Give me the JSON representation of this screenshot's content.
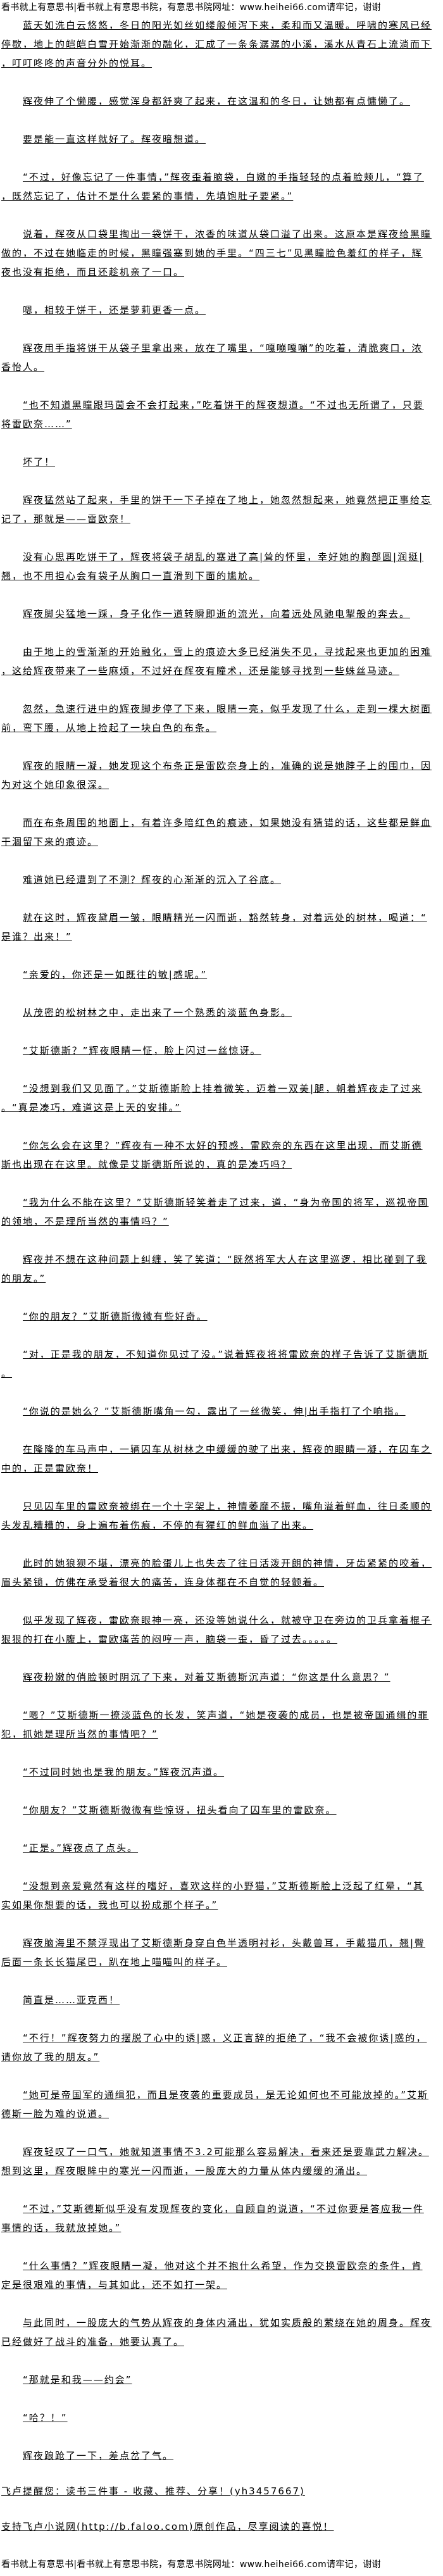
{
  "banner": "看书就上有意思书|看书就上有意思书院，有意思书院网址：www.heihei66.com请牢记，谢谢",
  "paragraphs": [
    "蓝天如洗白云悠悠，冬日的阳光如丝如缕般倾泻下来，柔和而又温暖。呼啸的寒风已经停歇，地上的皑皑白雪开始渐渐的融化，汇成了一条条潺潺的小溪，溪水从青石上流淌而下，叮叮咚咚的声音分外的悦耳。",
    "辉夜伸了个懒腰，感觉浑身都舒爽了起来，在这温和的冬日，让她都有点慵懒了。",
    "要是能一直这样就好了。辉夜暗想道。",
    "“不过，好像忘记了一件事情，”辉夜歪着脑袋，白嫩的手指轻轻的点着脸颊儿，“算了，既然忘记了，估计不是什么要紧的事情，先填饱肚子要紧。”",
    "说着，辉夜从口袋里掏出一袋饼干，浓香的味道从袋口溢了出来。这原本是辉夜给黑瞳做的，不过在她临走的时候，黑瞳强塞到她的手里。“四三七”见黑瞳脸色羞红的样子，辉夜也没有拒绝，而且还趁机亲了一口。",
    "嗯，相较于饼干，还是萝莉更香一点。",
    "辉夜用手指将饼干从袋子里拿出来，放在了嘴里，“嘎嘣嘎嘣”的吃着，清脆爽口，浓香怡人。",
    "“也不知道黑瞳跟玛茵会不会打起来，”吃着饼干的辉夜想道。“不过也无所谓了，只要将雷欧奈……”",
    "坏了！",
    "辉夜猛然站了起来，手里的饼干一下子掉在了地上，她忽然想起来，她竟然把正事给忘记了，那就是——雷欧奈！",
    "没有心思再吃饼干了，辉夜将袋子胡乱的塞进了高|耸的怀里，幸好她的胸部圆|润挺|翘，也不用担心会有袋子从胸口一直滑到下面的尴尬。",
    "辉夜脚尖猛地一踩，身子化作一道转瞬即逝的流光，向着远处风驰电掣般的奔去。",
    "由于地上的雪渐渐的开始融化，雪上的痕迹大多已经消失不见，寻找起来也更加的困难，这给辉夜带来了一些麻烦，不过好在辉夜有瞳术，还是能够寻找到一些蛛丝马迹。",
    "忽然，急速行进中的辉夜脚步停了下来，眼睛一亮，似乎发现了什么，走到一棵大树面前，弯下腰，从地上捡起了一块白色的布条。",
    "辉夜的眼睛一凝，她发现这个布条正是雷欧奈身上的，准确的说是她脖子上的围巾，因为对这个她印象很深。",
    "而在布条周围的地面上，有着许多暗红色的痕迹，如果她没有猜错的话，这些都是鲜血干涸留下来的痕迹。",
    "难道她已经遭到了不测？辉夜的心渐渐的沉入了谷底。",
    "就在这时，辉夜黛眉一皱，眼睛精光一闪而逝，豁然转身，对着远处的树林，喝道：“是谁？出来！”",
    "“亲爱的，你还是一如既往的敏|感呢。”",
    "从茂密的松树林之中，走出来了一个熟悉的淡蓝色身影。",
    "“艾斯德斯？”辉夜眼睛一怔，脸上闪过一丝惊讶。",
    "“没想到我们又见面了。”艾斯德斯脸上挂着微笑，迈着一双美|腿，朝着辉夜走了过来。“真是凑巧，难道这是上天的安排。”",
    "“你怎么会在这里？”辉夜有一种不太好的预感，雷欧奈的东西在这里出现，而艾斯德斯也出现在在这里。就像是艾斯德斯所说的，真的是凑巧吗？",
    "“我为什么不能在这里？”艾斯德斯轻笑着走了过来，道，“身为帝国的将军，巡视帝国的领地，不是理所当然的事情吗？”",
    "辉夜并不想在这种问题上纠缠，笑了笑道：“既然将军大人在这里巡逻，相比碰到了我的朋友。”",
    "“你的朋友？”艾斯德斯微微有些好奇。",
    "“对，正是我的朋友，不知道你见过了没。”说着辉夜将将雷欧奈的样子告诉了艾斯德斯。",
    "“你说的是她么？”艾斯德斯嘴角一勾，露出了一丝微笑，伸|出手指打了个响指。",
    "在隆隆的车马声中，一辆囚车从树林之中缓缓的驶了出来，辉夜的眼睛一凝，在囚车之中的，正是雷欧奈！",
    "只见囚车里的雷欧奈被绑在一个十字架上，神情萎靡不振，嘴角溢着鲜血，往日柔顺的头发乱糟糟的，身上遍布着伤痕，不停的有猩红的鲜血溢了出来。",
    "此时的她狼狈不堪，漂亮的脸蛋儿上也失去了往日活泼开朗的神情，牙齿紧紧的咬着，眉头紧锁，仿佛在承受着很大的痛苦，连身体都在不自觉的轻颤着。",
    "似乎发现了辉夜，雷欧奈眼神一亮，还没等她说什么，就被守卫在旁边的卫兵拿着棍子狠狠的打在小腹上，雷欧痛苦的闷哼一声，脑袋一歪，昏了过去。。。。。",
    "辉夜粉嫩的俏脸顿时阴沉了下来，对着艾斯德斯沉声道：“你这是什么意思？”",
    "“嗯？”艾斯德斯一撩淡蓝色的长发，笑声道，“她是夜袭的成员，也是被帝国通缉的罪犯，抓她是理所当然的事情吧？”",
    "“不过同时她也是我的朋友。”辉夜沉声道。",
    "“你朋友？”艾斯德斯微微有些惊讶，扭头看向了囚车里的雷欧奈。",
    "“正是。”辉夜点了点头。",
    "“没想到亲爱竟然有这样的嗜好，喜欢这样的小野猫，”艾斯德斯脸上泛起了红晕，“其实如果你想要的话，我也可以扮成那个样子。”",
    "辉夜脑海里不禁浮现出了艾斯德斯身穿白色半透明衬衫，头戴兽耳，手戴猫爪，翘|臀后面一条长长猫尾巴，趴在地上喵喵叫的样子。",
    "简直是……亚克西！",
    "“不行！”辉夜努力的摆脱了心中的诱|惑，义正言辞的拒绝了，“我不会被你诱|惑的，请你放了我的朋友。”",
    "“她可是帝国军的通缉犯，而且是夜袭的重要成员，是无论如何也不可能放掉的。”艾斯德斯一脸为难的说道。",
    "辉夜轻叹了一口气，她就知道事情不3.2可能那么容易解决，看来还是要靠武力解决。想到这里，辉夜眼眸中的寒光一闪而逝，一股庞大的力量从体内缓缓的涌出。",
    "“不过，”艾斯德斯似乎没有发现辉夜的变化，自顾自的说道，“不过你要是答应我一件事情的话，我就放掉她。”",
    "“什么事情？”辉夜眼睛一凝，他对这个并不抱什么希望，作为交换雷欧奈的条件，肯定是很艰难的事情，与其如此，还不如打一架。",
    "与此同时，一股庞大的气势从辉夜的身体内涌出，犹如实质般的萦绕在她的周身。辉夜已经做好了战斗的准备，她要认真了。",
    "“那就是和我——约会”",
    "“哈？！”",
    "辉夜踉跄了一下，差点岔了气。"
  ],
  "footer_notes": [
    "飞卢提醒您：读书三件事 - 收藏、推荐、分享！(yh3457667)",
    "支持飞卢小说网(http://b.faloo.com)原创作品，尽享阅读的喜悦！"
  ]
}
